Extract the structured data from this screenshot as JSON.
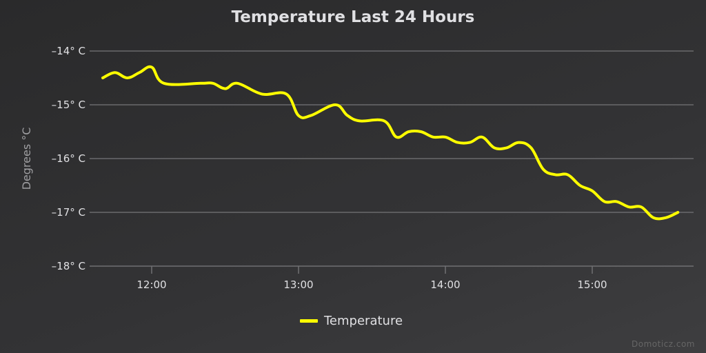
{
  "chart_data": {
    "type": "line",
    "title": "Temperature Last 24 Hours",
    "xlabel": "",
    "ylabel": "Degrees °C",
    "ylim": [
      -18,
      -14
    ],
    "y_ticks": [
      "-14° C",
      "-15° C",
      "-16° C",
      "-17° C",
      "-18° C"
    ],
    "x_ticks": [
      "12:00",
      "13:00",
      "14:00",
      "15:00"
    ],
    "grid": true,
    "legend_position": "bottom-center",
    "series": [
      {
        "name": "Temperature",
        "color": "#ffff00",
        "points": [
          {
            "x": "11:40",
            "y": -14.5
          },
          {
            "x": "11:45",
            "y": -14.4
          },
          {
            "x": "11:50",
            "y": -14.5
          },
          {
            "x": "11:55",
            "y": -14.4
          },
          {
            "x": "12:00",
            "y": -14.3
          },
          {
            "x": "12:05",
            "y": -14.6
          },
          {
            "x": "12:20",
            "y": -14.6
          },
          {
            "x": "12:25",
            "y": -14.6
          },
          {
            "x": "12:30",
            "y": -14.7
          },
          {
            "x": "12:35",
            "y": -14.6
          },
          {
            "x": "12:45",
            "y": -14.8
          },
          {
            "x": "12:55",
            "y": -14.8
          },
          {
            "x": "13:00",
            "y": -15.2
          },
          {
            "x": "13:05",
            "y": -15.2
          },
          {
            "x": "13:15",
            "y": -15.0
          },
          {
            "x": "13:20",
            "y": -15.2
          },
          {
            "x": "13:25",
            "y": -15.3
          },
          {
            "x": "13:35",
            "y": -15.3
          },
          {
            "x": "13:40",
            "y": -15.6
          },
          {
            "x": "13:45",
            "y": -15.5
          },
          {
            "x": "13:50",
            "y": -15.5
          },
          {
            "x": "13:55",
            "y": -15.6
          },
          {
            "x": "14:00",
            "y": -15.6
          },
          {
            "x": "14:05",
            "y": -15.7
          },
          {
            "x": "14:10",
            "y": -15.7
          },
          {
            "x": "14:15",
            "y": -15.6
          },
          {
            "x": "14:20",
            "y": -15.8
          },
          {
            "x": "14:25",
            "y": -15.8
          },
          {
            "x": "14:30",
            "y": -15.7
          },
          {
            "x": "14:35",
            "y": -15.8
          },
          {
            "x": "14:40",
            "y": -16.2
          },
          {
            "x": "14:45",
            "y": -16.3
          },
          {
            "x": "14:50",
            "y": -16.3
          },
          {
            "x": "14:55",
            "y": -16.5
          },
          {
            "x": "15:00",
            "y": -16.6
          },
          {
            "x": "15:05",
            "y": -16.8
          },
          {
            "x": "15:10",
            "y": -16.8
          },
          {
            "x": "15:15",
            "y": -16.9
          },
          {
            "x": "15:20",
            "y": -16.9
          },
          {
            "x": "15:25",
            "y": -17.1
          },
          {
            "x": "15:30",
            "y": -17.1
          },
          {
            "x": "15:35",
            "y": -17.0
          }
        ]
      }
    ]
  },
  "page": {
    "title": "Temperature Last 24 Hours",
    "legend_label": "Temperature",
    "credits": "Domoticz.com"
  }
}
